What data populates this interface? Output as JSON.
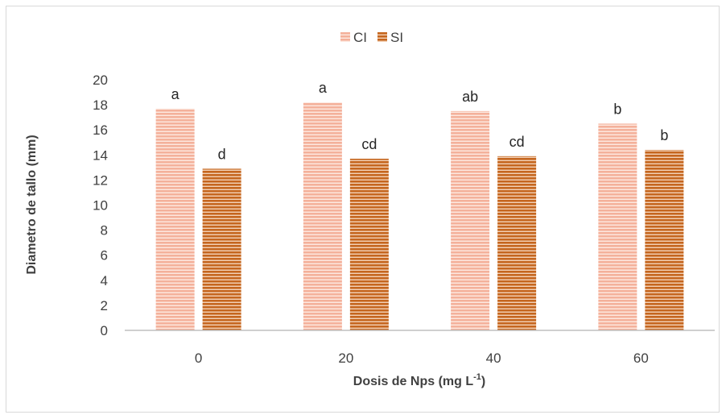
{
  "chart_data": {
    "type": "bar",
    "categories": [
      "0",
      "20",
      "40",
      "60"
    ],
    "series": [
      {
        "name": "CI",
        "values": [
          17.7,
          18.2,
          17.5,
          16.5
        ],
        "labels": [
          "a",
          "a",
          "ab",
          "b"
        ],
        "color": "#f4b19b",
        "stripe": "#ffffff"
      },
      {
        "name": "SI",
        "values": [
          12.9,
          13.7,
          13.9,
          14.4
        ],
        "labels": [
          "d",
          "cd",
          "cd",
          "b"
        ],
        "color": "#c5661f",
        "stripe": "#ffffff"
      }
    ],
    "ylim": [
      0,
      20
    ],
    "yticks": [
      "0",
      "2",
      "4",
      "6",
      "8",
      "10",
      "12",
      "14",
      "16",
      "18",
      "20"
    ],
    "ylabel": "Diametro de tallo (mm)",
    "xlabel": {
      "text": "Dosis de Nps (mg L",
      "sup": "-1",
      "close": ")"
    },
    "legend_position": "top-center",
    "grid": false
  }
}
